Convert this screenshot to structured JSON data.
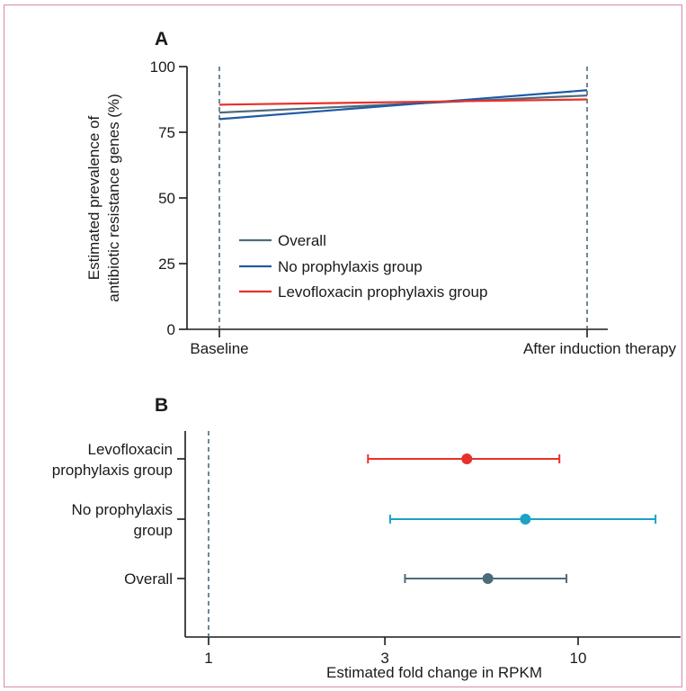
{
  "chart_data": [
    {
      "panel": "A",
      "type": "line",
      "x": [
        "Baseline",
        "After induction therapy"
      ],
      "ylabel": "Estimated prevalence of antibiotic resistance genes (%)",
      "ylabel_lines": [
        "Estimated prevalence of",
        "antibiotic resistance genes (%)"
      ],
      "ylim": [
        0,
        100
      ],
      "yticks": [
        0,
        25,
        50,
        75,
        100
      ],
      "legend_position": "lower-left",
      "series": [
        {
          "name": "Overall",
          "values": [
            82.5,
            89
          ],
          "color": "#4e6b7a"
        },
        {
          "name": "No prophylaxis group",
          "values": [
            80,
            91
          ],
          "color": "#1f5aa6"
        },
        {
          "name": "Levofloxacin prophylaxis group",
          "values": [
            85.5,
            87.5
          ],
          "color": "#e8302a"
        }
      ],
      "reference_lines": "dashed vertical at Baseline and After induction therapy"
    },
    {
      "panel": "B",
      "type": "scatter",
      "subtype": "forest",
      "xlabel": "Estimated fold change in RPKM",
      "xscale": "log",
      "xlim": [
        0.9,
        15
      ],
      "xticks": [
        1,
        3,
        10
      ],
      "xtick_labels": [
        "1",
        "3",
        "10"
      ],
      "reference_line": 1,
      "categories": [
        {
          "label_lines": [
            "Levofloxacin",
            "prophylaxis group"
          ],
          "estimate": 5.0,
          "lower": 2.7,
          "upper": 8.9,
          "color": "#e8302a"
        },
        {
          "label_lines": [
            "No prophylaxis",
            "group"
          ],
          "estimate": 7.2,
          "lower": 3.1,
          "upper": 16.2,
          "color": "#1ba3c6"
        },
        {
          "label_lines": [
            "Overall"
          ],
          "estimate": 5.7,
          "lower": 3.4,
          "upper": 9.3,
          "color": "#4e6b7a"
        }
      ]
    }
  ]
}
